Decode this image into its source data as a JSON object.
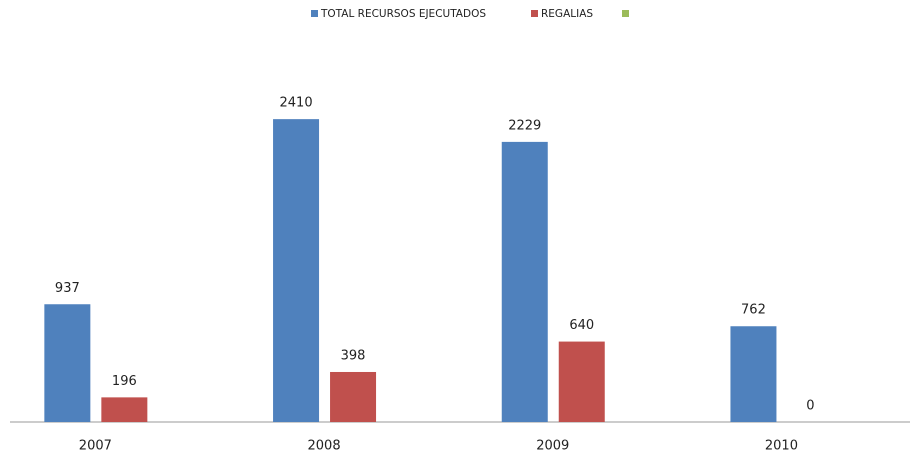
{
  "chart_data": {
    "type": "bar",
    "categories": [
      "2007",
      "2008",
      "2009",
      "2010"
    ],
    "series": [
      {
        "name": "TOTAL RECURSOS EJECUTADOS",
        "color": "#4f81bd",
        "values": [
          937,
          2410,
          2229,
          762
        ]
      },
      {
        "name": "REGALIAS",
        "color": "#c0504d",
        "values": [
          196,
          398,
          640,
          0
        ]
      }
    ],
    "ylim": [
      0,
      3000
    ]
  }
}
